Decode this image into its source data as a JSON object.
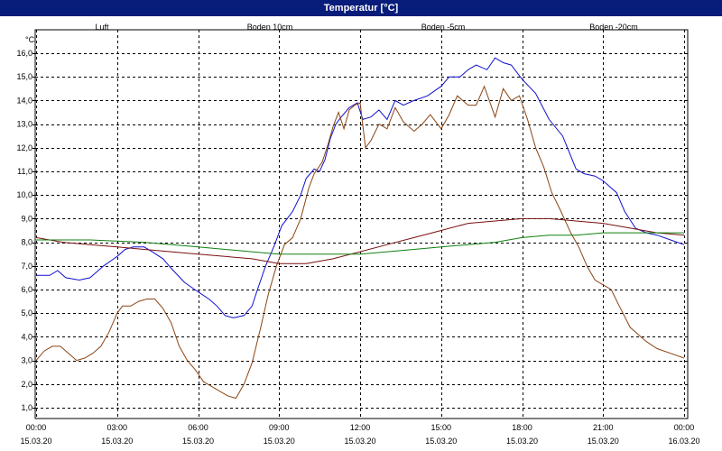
{
  "window_title": "Temperatur [°C]",
  "chart_data": {
    "type": "line",
    "title": "Temperatur [°C]",
    "ylabel": "°C",
    "ylim": [
      0.5,
      16.5
    ],
    "yticks": [
      "1,0",
      "2,0",
      "3,0",
      "4,0",
      "5,0",
      "6,0",
      "7,0",
      "8,0",
      "9,0",
      "10,0",
      "11,0",
      "12,0",
      "13,0",
      "14,0",
      "15,0",
      "16,0"
    ],
    "xlim": [
      0,
      24
    ],
    "xticks": [
      {
        "time": "00:00",
        "date": "15.03.20"
      },
      {
        "time": "03:00",
        "date": "15.03.20"
      },
      {
        "time": "06:00",
        "date": "15.03.20"
      },
      {
        "time": "09:00",
        "date": "15.03.20"
      },
      {
        "time": "12:00",
        "date": "15.03.20"
      },
      {
        "time": "15:00",
        "date": "15.03.20"
      },
      {
        "time": "18:00",
        "date": "15.03.20"
      },
      {
        "time": "21:00",
        "date": "15.03.20"
      },
      {
        "time": "00:00",
        "date": "16.03.20"
      }
    ],
    "grid": true,
    "legend_position": "top",
    "series": [
      {
        "name": "Luft",
        "color": "#1010d0",
        "points": [
          [
            0,
            6.6
          ],
          [
            0.5,
            6.6
          ],
          [
            0.8,
            6.8
          ],
          [
            1.1,
            6.5
          ],
          [
            1.6,
            6.4
          ],
          [
            2.0,
            6.5
          ],
          [
            2.5,
            7.0
          ],
          [
            3.0,
            7.4
          ],
          [
            3.3,
            7.7
          ],
          [
            3.6,
            7.8
          ],
          [
            4.0,
            7.8
          ],
          [
            4.3,
            7.6
          ],
          [
            4.7,
            7.3
          ],
          [
            5.0,
            6.9
          ],
          [
            5.5,
            6.3
          ],
          [
            6.0,
            5.9
          ],
          [
            6.4,
            5.6
          ],
          [
            6.7,
            5.3
          ],
          [
            7.0,
            4.9
          ],
          [
            7.3,
            4.8
          ],
          [
            7.7,
            4.9
          ],
          [
            8.0,
            5.3
          ],
          [
            8.2,
            6.0
          ],
          [
            8.5,
            7.0
          ],
          [
            8.8,
            7.8
          ],
          [
            9.1,
            8.7
          ],
          [
            9.5,
            9.3
          ],
          [
            9.8,
            10.0
          ],
          [
            10.0,
            10.7
          ],
          [
            10.3,
            11.1
          ],
          [
            10.5,
            11.0
          ],
          [
            10.7,
            11.5
          ],
          [
            10.9,
            12.4
          ],
          [
            11.1,
            13.0
          ],
          [
            11.3,
            13.3
          ],
          [
            11.6,
            13.7
          ],
          [
            11.9,
            13.9
          ],
          [
            12.1,
            13.2
          ],
          [
            12.4,
            13.3
          ],
          [
            12.7,
            13.6
          ],
          [
            13.0,
            13.2
          ],
          [
            13.3,
            14.0
          ],
          [
            13.6,
            13.8
          ],
          [
            14.0,
            14.0
          ],
          [
            14.5,
            14.2
          ],
          [
            15.0,
            14.6
          ],
          [
            15.3,
            15.0
          ],
          [
            15.7,
            15.0
          ],
          [
            16.0,
            15.3
          ],
          [
            16.3,
            15.5
          ],
          [
            16.7,
            15.3
          ],
          [
            17.0,
            15.8
          ],
          [
            17.3,
            15.6
          ],
          [
            17.6,
            15.5
          ],
          [
            18.0,
            14.9
          ],
          [
            18.5,
            14.3
          ],
          [
            19.0,
            13.2
          ],
          [
            19.5,
            12.5
          ],
          [
            20.0,
            11.1
          ],
          [
            20.3,
            10.9
          ],
          [
            20.7,
            10.8
          ],
          [
            21.0,
            10.6
          ],
          [
            21.5,
            10.1
          ],
          [
            21.8,
            9.3
          ],
          [
            22.2,
            8.6
          ],
          [
            22.6,
            8.4
          ],
          [
            23.0,
            8.3
          ],
          [
            23.5,
            8.1
          ],
          [
            24.0,
            7.9
          ]
        ]
      },
      {
        "name": "Boden 10cm",
        "color": "#8b4513",
        "points": [
          [
            0,
            3.0
          ],
          [
            0.3,
            3.4
          ],
          [
            0.6,
            3.6
          ],
          [
            0.9,
            3.6
          ],
          [
            1.2,
            3.3
          ],
          [
            1.5,
            3.0
          ],
          [
            1.8,
            3.1
          ],
          [
            2.1,
            3.3
          ],
          [
            2.4,
            3.6
          ],
          [
            2.7,
            4.2
          ],
          [
            3.0,
            5.0
          ],
          [
            3.2,
            5.3
          ],
          [
            3.5,
            5.3
          ],
          [
            3.8,
            5.5
          ],
          [
            4.1,
            5.6
          ],
          [
            4.4,
            5.6
          ],
          [
            4.7,
            5.2
          ],
          [
            5.0,
            4.6
          ],
          [
            5.3,
            3.6
          ],
          [
            5.6,
            3.0
          ],
          [
            5.9,
            2.6
          ],
          [
            6.2,
            2.1
          ],
          [
            6.5,
            1.9
          ],
          [
            6.8,
            1.7
          ],
          [
            7.1,
            1.5
          ],
          [
            7.4,
            1.4
          ],
          [
            7.7,
            2.0
          ],
          [
            8.0,
            2.9
          ],
          [
            8.3,
            4.3
          ],
          [
            8.6,
            5.8
          ],
          [
            8.9,
            7.0
          ],
          [
            9.2,
            7.9
          ],
          [
            9.5,
            8.2
          ],
          [
            9.8,
            9.0
          ],
          [
            10.1,
            10.3
          ],
          [
            10.3,
            10.9
          ],
          [
            10.6,
            11.4
          ],
          [
            10.8,
            12.1
          ],
          [
            11.0,
            12.9
          ],
          [
            11.2,
            13.5
          ],
          [
            11.4,
            12.8
          ],
          [
            11.6,
            13.6
          ],
          [
            11.8,
            13.8
          ],
          [
            12.0,
            13.9
          ],
          [
            12.2,
            12.0
          ],
          [
            12.4,
            12.3
          ],
          [
            12.7,
            13.0
          ],
          [
            13.0,
            12.8
          ],
          [
            13.3,
            13.7
          ],
          [
            13.6,
            13.1
          ],
          [
            14.0,
            12.7
          ],
          [
            14.3,
            13.0
          ],
          [
            14.6,
            13.4
          ],
          [
            15.0,
            12.8
          ],
          [
            15.3,
            13.4
          ],
          [
            15.6,
            14.2
          ],
          [
            16.0,
            13.8
          ],
          [
            16.3,
            13.8
          ],
          [
            16.6,
            14.6
          ],
          [
            17.0,
            13.3
          ],
          [
            17.3,
            14.5
          ],
          [
            17.6,
            14.0
          ],
          [
            17.9,
            14.2
          ],
          [
            18.2,
            13.2
          ],
          [
            18.5,
            12.0
          ],
          [
            18.8,
            11.2
          ],
          [
            19.1,
            10.1
          ],
          [
            19.4,
            9.4
          ],
          [
            19.8,
            8.4
          ],
          [
            20.1,
            7.8
          ],
          [
            20.4,
            7.0
          ],
          [
            20.7,
            6.4
          ],
          [
            21.0,
            6.2
          ],
          [
            21.3,
            6.0
          ],
          [
            21.6,
            5.3
          ],
          [
            22.0,
            4.4
          ],
          [
            22.3,
            4.1
          ],
          [
            22.6,
            3.8
          ],
          [
            23.0,
            3.5
          ],
          [
            23.5,
            3.3
          ],
          [
            24.0,
            3.1
          ]
        ]
      },
      {
        "name": "Boden -5cm",
        "color": "#7a1010",
        "points": [
          [
            0,
            8.2
          ],
          [
            1,
            8.0
          ],
          [
            2,
            7.9
          ],
          [
            3,
            7.8
          ],
          [
            4,
            7.7
          ],
          [
            5,
            7.6
          ],
          [
            6,
            7.5
          ],
          [
            7,
            7.4
          ],
          [
            8,
            7.3
          ],
          [
            9,
            7.1
          ],
          [
            10,
            7.1
          ],
          [
            11,
            7.3
          ],
          [
            12,
            7.6
          ],
          [
            13,
            7.9
          ],
          [
            14,
            8.2
          ],
          [
            15,
            8.5
          ],
          [
            16,
            8.8
          ],
          [
            17,
            8.9
          ],
          [
            18,
            9.0
          ],
          [
            19,
            9.0
          ],
          [
            20,
            8.9
          ],
          [
            21,
            8.8
          ],
          [
            22,
            8.6
          ],
          [
            23,
            8.4
          ],
          [
            24,
            8.3
          ]
        ]
      },
      {
        "name": "Boden -20cm",
        "color": "#108010",
        "points": [
          [
            0,
            8.1
          ],
          [
            2,
            8.1
          ],
          [
            4,
            8.0
          ],
          [
            6,
            7.8
          ],
          [
            7,
            7.7
          ],
          [
            8,
            7.6
          ],
          [
            9,
            7.5
          ],
          [
            10,
            7.5
          ],
          [
            11,
            7.5
          ],
          [
            12,
            7.5
          ],
          [
            13,
            7.6
          ],
          [
            14,
            7.7
          ],
          [
            15,
            7.8
          ],
          [
            16,
            7.9
          ],
          [
            17,
            8.0
          ],
          [
            18,
            8.2
          ],
          [
            19,
            8.3
          ],
          [
            20,
            8.3
          ],
          [
            21,
            8.4
          ],
          [
            22,
            8.4
          ],
          [
            23,
            8.4
          ],
          [
            24,
            8.4
          ]
        ]
      }
    ]
  }
}
